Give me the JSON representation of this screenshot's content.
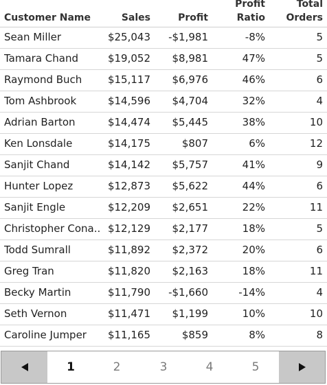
{
  "table": {
    "headers": {
      "name": "Customer Name",
      "sales": "Sales",
      "profit": "Profit",
      "ratio_line1": "Profit",
      "ratio_line2": "Ratio",
      "orders_line1": "Total",
      "orders_line2": "Orders"
    },
    "rows": [
      {
        "name": "Sean Miller",
        "sales": "$25,043",
        "profit": "-$1,981",
        "ratio": "-8%",
        "orders": "5"
      },
      {
        "name": "Tamara Chand",
        "sales": "$19,052",
        "profit": "$8,981",
        "ratio": "47%",
        "orders": "5"
      },
      {
        "name": "Raymond Buch",
        "sales": "$15,117",
        "profit": "$6,976",
        "ratio": "46%",
        "orders": "6"
      },
      {
        "name": "Tom Ashbrook",
        "sales": "$14,596",
        "profit": "$4,704",
        "ratio": "32%",
        "orders": "4"
      },
      {
        "name": "Adrian Barton",
        "sales": "$14,474",
        "profit": "$5,445",
        "ratio": "38%",
        "orders": "10"
      },
      {
        "name": "Ken Lonsdale",
        "sales": "$14,175",
        "profit": "$807",
        "ratio": "6%",
        "orders": "12"
      },
      {
        "name": "Sanjit Chand",
        "sales": "$14,142",
        "profit": "$5,757",
        "ratio": "41%",
        "orders": "9"
      },
      {
        "name": "Hunter Lopez",
        "sales": "$12,873",
        "profit": "$5,622",
        "ratio": "44%",
        "orders": "6"
      },
      {
        "name": "Sanjit Engle",
        "sales": "$12,209",
        "profit": "$2,651",
        "ratio": "22%",
        "orders": "11"
      },
      {
        "name": "Christopher Cona..",
        "sales": "$12,129",
        "profit": "$2,177",
        "ratio": "18%",
        "orders": "5"
      },
      {
        "name": "Todd Sumrall",
        "sales": "$11,892",
        "profit": "$2,372",
        "ratio": "20%",
        "orders": "6"
      },
      {
        "name": "Greg Tran",
        "sales": "$11,820",
        "profit": "$2,163",
        "ratio": "18%",
        "orders": "11"
      },
      {
        "name": "Becky Martin",
        "sales": "$11,790",
        "profit": "-$1,660",
        "ratio": "-14%",
        "orders": "4"
      },
      {
        "name": "Seth Vernon",
        "sales": "$11,471",
        "profit": "$1,199",
        "ratio": "10%",
        "orders": "10"
      },
      {
        "name": "Caroline Jumper",
        "sales": "$11,165",
        "profit": "$859",
        "ratio": "8%",
        "orders": "8"
      }
    ]
  },
  "pager": {
    "prev_icon": "triangle-left-icon",
    "next_icon": "triangle-right-icon",
    "pages": [
      "1",
      "2",
      "3",
      "4",
      "5"
    ],
    "current_page": "1"
  },
  "colors": {
    "arrow_bg": "#c8c8c8",
    "active_page": "#111111",
    "inactive_page": "#7a7a7a",
    "row_divider": "#d6d6d6"
  }
}
